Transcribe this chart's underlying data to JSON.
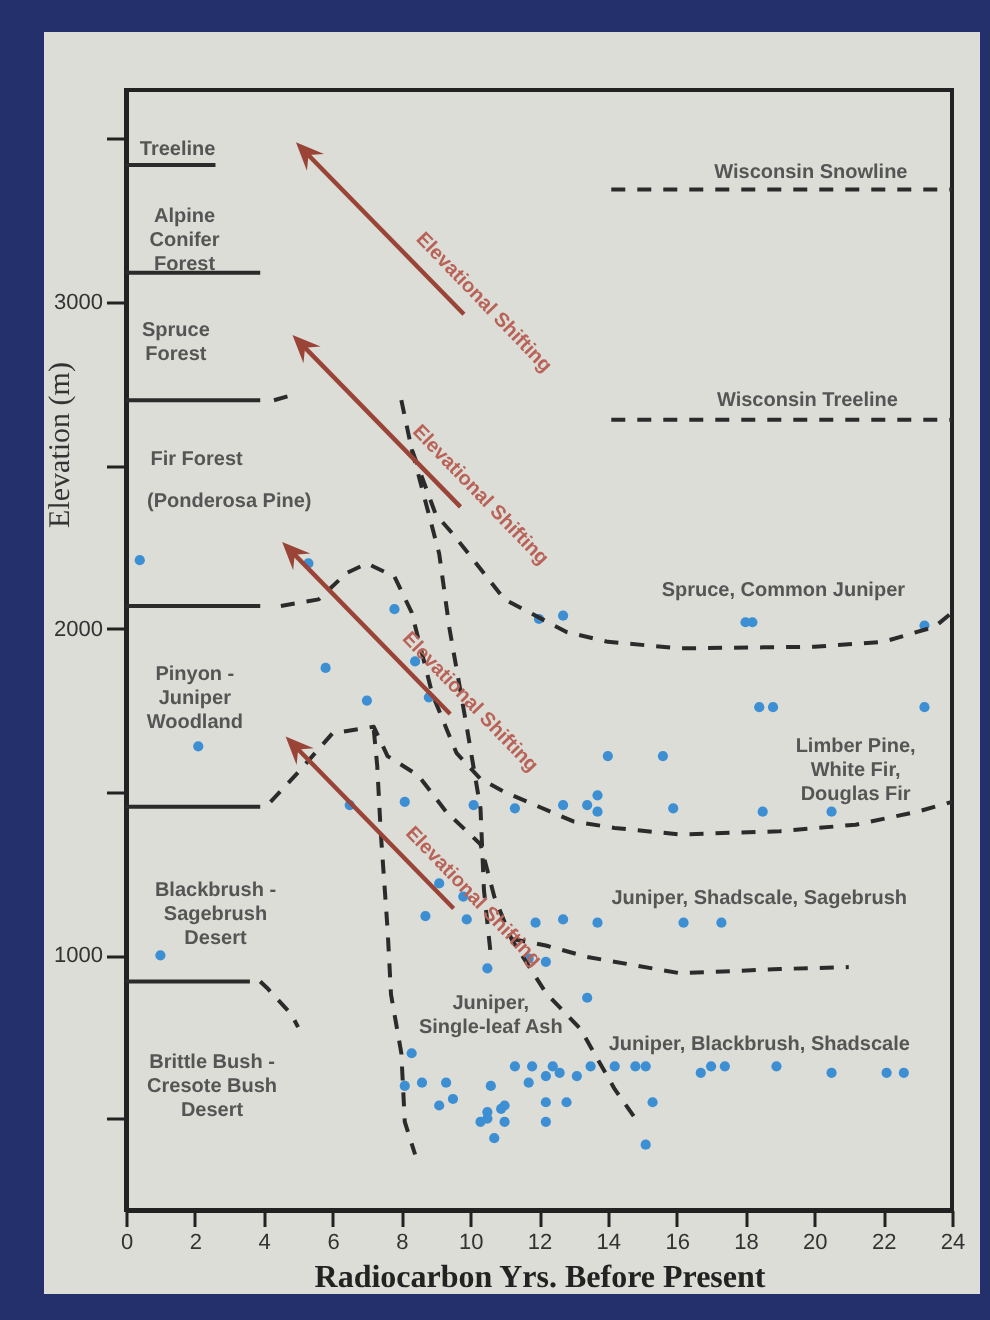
{
  "chart_data": {
    "type": "scatter",
    "xlabel": "Radiocarbon Yrs. Before Present",
    "ylabel": "Elevation (m)",
    "xlim": [
      0,
      24
    ],
    "xticks": [
      0,
      2,
      4,
      6,
      8,
      10,
      12,
      14,
      16,
      18,
      20,
      22,
      24
    ],
    "ylim": [
      220,
      3650
    ],
    "yticks": [
      {
        "value": 500,
        "label": null
      },
      1000,
      {
        "value": 1500,
        "label": null
      },
      2000,
      {
        "value": 2500,
        "label": null
      },
      3000,
      {
        "value": 3500,
        "label": null
      }
    ],
    "grid": false,
    "series": [
      {
        "marker": "circle",
        "color": "#3d8fd4",
        "x": [
          0.4,
          5.3,
          7.8,
          8.4,
          5.8,
          7.0,
          8.8,
          2.1,
          6.5,
          8.1,
          10.1,
          11.3,
          9.1,
          9.8,
          8.7,
          9.9,
          10.5,
          1.0,
          8.3,
          8.1,
          8.6,
          9.3,
          9.1,
          9.5,
          10.6,
          11.3,
          10.9,
          10.5,
          10.3,
          11.0,
          10.7,
          18.4,
          18.8,
          23.2,
          14.0,
          15.6,
          12.7,
          13.4,
          13.7,
          13.7,
          15.9,
          18.5,
          20.5,
          11.9,
          12.7,
          13.7,
          16.2,
          17.3,
          11.7,
          12.2,
          13.4,
          11.8,
          12.4,
          12.6,
          12.2,
          11.7,
          13.1,
          13.5,
          14.2,
          14.8,
          15.1,
          16.7,
          17.0,
          17.4,
          18.9,
          20.5,
          22.1,
          22.6,
          12.2,
          12.8,
          15.3,
          11.0,
          10.5,
          12.2,
          15.1,
          12.0,
          12.7,
          18.0,
          18.2,
          23.2
        ],
        "values": [
          2210,
          2200,
          2060,
          1900,
          1880,
          1780,
          1790,
          1640,
          1460,
          1470,
          1460,
          1450,
          1220,
          1180,
          1120,
          1110,
          960,
          1000,
          700,
          600,
          610,
          610,
          540,
          560,
          600,
          660,
          530,
          500,
          490,
          490,
          440,
          1760,
          1760,
          1760,
          1610,
          1610,
          1460,
          1460,
          1490,
          1440,
          1450,
          1440,
          1440,
          1100,
          1110,
          1100,
          1100,
          1100,
          990,
          980,
          870,
          660,
          660,
          640,
          630,
          610,
          630,
          660,
          660,
          660,
          660,
          640,
          660,
          660,
          660,
          640,
          640,
          640,
          550,
          550,
          550,
          540,
          520,
          490,
          420,
          2030,
          2040,
          2020,
          2020,
          2010
        ]
      },
      {
        "type": "line",
        "color": "#2b2b2b",
        "line_style": "solid",
        "x": [
          0,
          2.6
        ],
        "values": [
          3420,
          3420
        ]
      },
      {
        "type": "line",
        "color": "#2b2b2b",
        "line_style": "solid",
        "x": [
          0,
          3.9
        ],
        "values": [
          3090,
          3090
        ]
      },
      {
        "type": "line",
        "color": "#2b2b2b",
        "line_style": "solid",
        "x": [
          0,
          3.9
        ],
        "values": [
          2700,
          2700
        ]
      },
      {
        "type": "line",
        "color": "#2b2b2b",
        "line_style": "solid",
        "x": [
          0,
          3.9
        ],
        "values": [
          2070,
          2070
        ]
      },
      {
        "type": "line",
        "color": "#2b2b2b",
        "line_style": "solid",
        "x": [
          0,
          3.9
        ],
        "values": [
          1455,
          1455
        ]
      },
      {
        "type": "line",
        "color": "#2b2b2b",
        "line_style": "solid",
        "x": [
          0,
          3.6
        ],
        "values": [
          920,
          920
        ]
      },
      {
        "type": "line",
        "color": "#2b2b2b",
        "line_style": "dashed",
        "x": [
          4.3,
          4.8
        ],
        "values": [
          2700,
          2715
        ]
      },
      {
        "type": "line",
        "color": "#2b2b2b",
        "line_style": "dashed",
        "x": [
          14.1,
          24
        ],
        "values": [
          3345,
          3345
        ]
      },
      {
        "type": "line",
        "color": "#2b2b2b",
        "line_style": "dashed",
        "x": [
          14.1,
          24
        ],
        "values": [
          2640,
          2640
        ]
      },
      {
        "type": "line",
        "color": "#2b2b2b",
        "line_style": "dashed",
        "x": [
          4.5,
          5.6,
          6.4,
          7.0,
          7.8,
          8.3,
          8.9,
          9.6,
          10.3,
          11.0,
          12.0,
          13.0,
          14.2,
          16.1,
          19.0,
          21.2,
          23.0,
          24
        ],
        "values": [
          2070,
          2090,
          2170,
          2200,
          2160,
          2050,
          1800,
          1620,
          1540,
          1500,
          1455,
          1410,
          1390,
          1370,
          1380,
          1400,
          1440,
          1470
        ]
      },
      {
        "type": "line",
        "color": "#2b2b2b",
        "line_style": "dashed",
        "x": [
          8.0,
          8.3,
          9.0,
          9.5,
          10.1,
          11.0,
          12.8,
          14.0,
          16.1,
          20.0,
          22.0,
          23.5,
          24
        ],
        "values": [
          2700,
          2550,
          2350,
          2290,
          2210,
          2090,
          1990,
          1960,
          1940,
          1945,
          1960,
          2006,
          2050
        ]
      },
      {
        "type": "line",
        "color": "#2b2b2b",
        "line_style": "dashed",
        "x": [
          8.3,
          8.7,
          9.1,
          9.4,
          9.9,
          10.3,
          10.4,
          10.6
        ],
        "values": [
          2550,
          2390,
          2230,
          2000,
          1700,
          1450,
          1200,
          1000
        ]
      },
      {
        "type": "line",
        "color": "#2b2b2b",
        "line_style": "dashed",
        "x": [
          4.2,
          5.0,
          6.0,
          6.6,
          7.2,
          7.6,
          8.5,
          9.3,
          10.3,
          10.7,
          11.2,
          12.2,
          13.2,
          14.2,
          14.9
        ],
        "values": [
          1470,
          1560,
          1680,
          1690,
          1700,
          1610,
          1550,
          1440,
          1340,
          1180,
          1050,
          885,
          775,
          590,
          485
        ]
      },
      {
        "type": "line",
        "color": "#2b2b2b",
        "line_style": "dashed",
        "x": [
          7.2,
          7.3,
          7.4,
          7.6,
          7.7,
          8.0,
          8.1,
          8.4
        ],
        "values": [
          1690,
          1580,
          1380,
          1080,
          880,
          700,
          490,
          390
        ]
      },
      {
        "type": "line",
        "color": "#2b2b2b",
        "line_style": "dashed",
        "x": [
          11.2,
          12.2,
          13.4,
          16.1,
          19.0,
          21.0
        ],
        "values": [
          1050,
          1030,
          995,
          945,
          958,
          964
        ]
      },
      {
        "type": "line",
        "color": "#2b2b2b",
        "line_style": "dashed",
        "x": [
          3.9,
          4.1,
          4.8,
          5.0
        ],
        "values": [
          920,
          900,
          820,
          780
        ]
      }
    ],
    "annotations": [
      "Elevational Shifting",
      "Elevational Shifting",
      "Elevational Shifting",
      "Elevational Shifting",
      "Treeline",
      "Alpine\nConifer\nForest",
      "Spruce\nForest",
      "Fir Forest",
      "(Ponderosa Pine)",
      "Pinyon -\nJuniper\nWoodland",
      "Blackbrush -\nSagebrush\nDesert",
      "Brittle Bush -\nCresote Bush\nDesert",
      "Wisconsin Snowline",
      "Wisconsin Treeline",
      "Spruce, Common Juniper",
      "Limber Pine,\nWhite Fir,\nDouglas Fir",
      "Juniper, Shadscale, Sagebrush",
      "Juniper,\nSingle-leaf Ash",
      "Juniper, Blackbrush, Shadscale"
    ]
  }
}
